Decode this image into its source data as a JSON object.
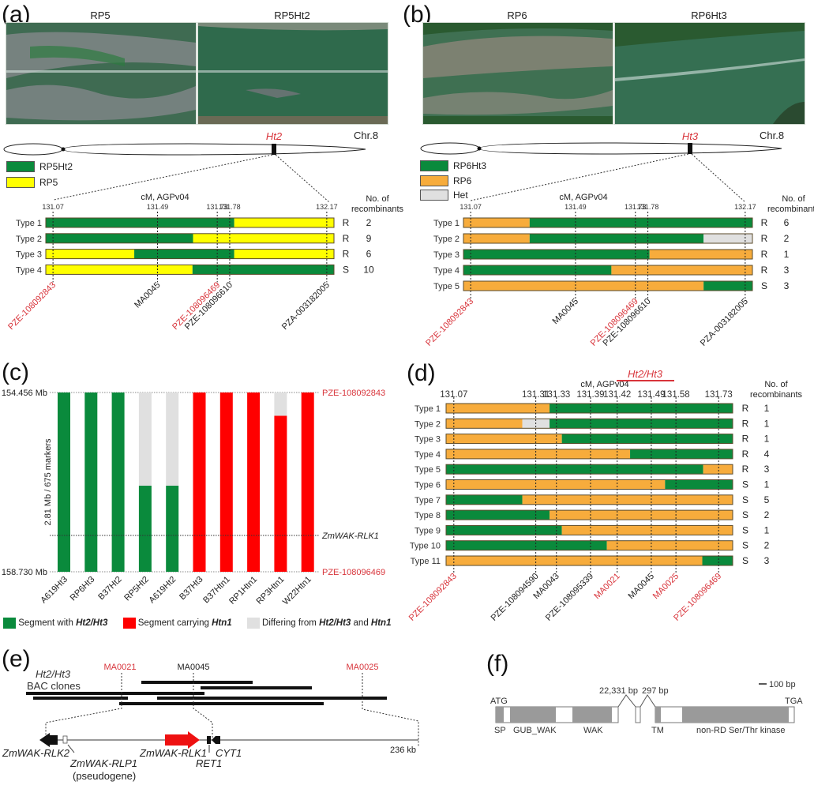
{
  "colors": {
    "green": "#0a8a3c",
    "yellow": "#ffff00",
    "orange": "#f7ac3c",
    "het": "#e0e0e0",
    "red": "#ff0000",
    "marker_red": "#d8343b",
    "gray_domain": "#9a9a9a"
  },
  "panel_a": {
    "label": "(a)",
    "photos": [
      {
        "title": "RP5"
      },
      {
        "title": "RP5Ht2"
      }
    ],
    "gene_label": "Ht2",
    "chr_label": "Chr.8",
    "legend": [
      {
        "label": "RP5Ht2",
        "color": "green"
      },
      {
        "label": "RP5",
        "color": "yellow"
      }
    ],
    "axis_title": "cM, AGPv04",
    "col_header_1": "No. of",
    "col_header_2": "recombinants"
  },
  "panel_b": {
    "label": "(b)",
    "photos": [
      {
        "title": "RP6"
      },
      {
        "title": "RP6Ht3"
      }
    ],
    "gene_label": "Ht3",
    "chr_label": "Chr.8",
    "legend": [
      {
        "label": "RP6Ht3",
        "color": "green"
      },
      {
        "label": "RP6",
        "color": "orange"
      },
      {
        "label": "Het",
        "color": "het"
      }
    ],
    "axis_title": "cM, AGPv04",
    "col_header_1": "No. of",
    "col_header_2": "recombinants"
  },
  "panel_c": {
    "label": "(c)",
    "top_label": "154.456 Mb",
    "bottom_label": "158.730 Mb",
    "yaxis_label": "2.81 Mb / 675 markers",
    "top_marker": "PZE-108092843",
    "mid_marker": "ZmWAK-RLK1",
    "bottom_marker": "PZE-108096469",
    "legend": [
      {
        "label_pre": "Segment with ",
        "label_bold": "Ht2/Ht3",
        "label_mid": "",
        "label_bold2": "",
        "color": "green"
      },
      {
        "label_pre": "Segment carrying ",
        "label_bold": "Htn1",
        "label_mid": "",
        "label_bold2": "",
        "color": "red"
      },
      {
        "label_pre": "Differing from ",
        "label_bold": "Ht2/Ht3",
        "label_mid": " and ",
        "label_bold2": "Htn1",
        "color": "het"
      }
    ]
  },
  "panel_d": {
    "label": "(d)",
    "axis_title": "cM, AGPv04",
    "region_label": "Ht2/Ht3",
    "col_header_1": "No. of",
    "col_header_2": "recombinants"
  },
  "panel_e": {
    "label": "(e)",
    "title_italic": "Ht2/Ht3",
    "title_2": "BAC clones",
    "markers": [
      {
        "name": "MA0021",
        "red": true
      },
      {
        "name": "MA0045",
        "red": false
      },
      {
        "name": "MA0025",
        "red": true
      }
    ],
    "length_label": "236 kb",
    "genes": [
      {
        "name": "ZmWAK-RLK2"
      },
      {
        "name": "ZmWAK-RLP1"
      },
      {
        "name": "(pseudogene)"
      },
      {
        "name": "ZmWAK-RLK1"
      },
      {
        "name": "RET1"
      },
      {
        "name": "CYT1"
      }
    ]
  },
  "panel_f": {
    "label": "(f)",
    "scale_label": "100 bp",
    "intron1": "22,331 bp",
    "intron2": "297 bp",
    "start_codon": "ATG",
    "stop_codon": "TGA",
    "domains": [
      "SP",
      "GUB_WAK",
      "WAK",
      "TM",
      "non-RD Ser/Thr kinase"
    ]
  },
  "chart_data": [
    {
      "type": "haplotype-bars",
      "panel": "a",
      "xlabel": "cM, AGPv04",
      "ticks": [
        {
          "pos": 131.07,
          "marker": "PZE-108092843",
          "red": true
        },
        {
          "pos": 131.49,
          "marker": "MA0045",
          "red": false
        },
        {
          "pos": 131.73,
          "marker": "PZE-108096469",
          "red": true
        },
        {
          "pos": 131.78,
          "marker": "PZE-108096610",
          "red": false
        },
        {
          "pos": 132.17,
          "marker": "PZA-003182005",
          "red": false
        }
      ],
      "rows": [
        {
          "name": "Type 1",
          "phenotype": "R",
          "count": 2,
          "segments": [
            [
              "green",
              0,
              0.654
            ],
            [
              "yellow",
              0.654,
              1
            ]
          ]
        },
        {
          "name": "Type 2",
          "phenotype": "R",
          "count": 9,
          "segments": [
            [
              "green",
              0,
              0.511
            ],
            [
              "yellow",
              0.511,
              1
            ]
          ]
        },
        {
          "name": "Type 3",
          "phenotype": "R",
          "count": 6,
          "segments": [
            [
              "yellow",
              0,
              0.307
            ],
            [
              "green",
              0.307,
              0.654
            ],
            [
              "yellow",
              0.654,
              1
            ]
          ]
        },
        {
          "name": "Type 4",
          "phenotype": "S",
          "count": 10,
          "segments": [
            [
              "yellow",
              0,
              0.509
            ],
            [
              "green",
              0.509,
              1
            ]
          ]
        }
      ]
    },
    {
      "type": "haplotype-bars",
      "panel": "b",
      "xlabel": "cM, AGPv04",
      "ticks": [
        {
          "pos": 131.07,
          "marker": "PZE-108092843",
          "red": true
        },
        {
          "pos": 131.49,
          "marker": "MA0045",
          "red": false
        },
        {
          "pos": 131.73,
          "marker": "PZE-108096469",
          "red": true
        },
        {
          "pos": 131.78,
          "marker": "PZE-108096610",
          "red": false
        },
        {
          "pos": 132.17,
          "marker": "PZA-003182005",
          "red": false
        }
      ],
      "rows": [
        {
          "name": "Type 1",
          "phenotype": "R",
          "count": 6,
          "segments": [
            [
              "orange",
              0,
              0.229
            ],
            [
              "green",
              0.229,
              1
            ]
          ]
        },
        {
          "name": "Type 2",
          "phenotype": "R",
          "count": 2,
          "segments": [
            [
              "orange",
              0,
              0.229
            ],
            [
              "green",
              0.229,
              0.831
            ],
            [
              "het",
              0.831,
              1
            ]
          ]
        },
        {
          "name": "Type 3",
          "phenotype": "R",
          "count": 1,
          "segments": [
            [
              "green",
              0,
              0.644
            ],
            [
              "orange",
              0.644,
              1
            ]
          ]
        },
        {
          "name": "Type 4",
          "phenotype": "R",
          "count": 3,
          "segments": [
            [
              "green",
              0,
              0.512
            ],
            [
              "orange",
              0.512,
              1
            ]
          ]
        },
        {
          "name": "Type 5",
          "phenotype": "S",
          "count": 3,
          "segments": [
            [
              "orange",
              0,
              0.831
            ],
            [
              "green",
              0.831,
              1
            ]
          ]
        }
      ]
    },
    {
      "type": "bar",
      "panel": "c",
      "ylabel": "2.81 Mb / 675 markers",
      "ylim": [
        154.456,
        158.73
      ],
      "categories": [
        "A619Ht3",
        "RP6Ht3",
        "B37Ht2",
        "RP5Ht2",
        "A619Ht2",
        "B37Ht3",
        "B37Htn1",
        "RP1Htn1",
        "RP3Htn1",
        "W22Htn1"
      ],
      "series": [
        {
          "name": "Segment with Ht2/Ht3",
          "color": "green",
          "values": [
            1,
            1,
            1,
            0.48,
            0.48,
            0,
            0,
            0,
            0,
            0
          ]
        },
        {
          "name": "Segment carrying Htn1",
          "color": "red",
          "values": [
            0,
            0,
            0,
            0,
            0,
            1,
            1,
            1,
            0.87,
            1
          ]
        },
        {
          "name": "Differing from Ht2/Ht3 and Htn1",
          "color": "het",
          "values": [
            0,
            0,
            0,
            0.52,
            0.52,
            0,
            0,
            0,
            0.13,
            0
          ]
        }
      ]
    },
    {
      "type": "haplotype-bars",
      "panel": "d",
      "xlabel": "cM, AGPv04",
      "ticks": [
        {
          "pos": 131.07,
          "marker": "PZE-108092843",
          "red": true
        },
        {
          "pos": 131.31,
          "marker": "PZE-108094590",
          "red": false
        },
        {
          "pos": 131.33,
          "marker": "MA0043",
          "red": false
        },
        {
          "pos": 131.39,
          "marker": "PZE-108095339",
          "red": false
        },
        {
          "pos": 131.42,
          "marker": "MA0021",
          "red": true
        },
        {
          "pos": 131.49,
          "marker": "MA0045",
          "red": false
        },
        {
          "pos": 131.58,
          "marker": "MA0025",
          "red": true
        },
        {
          "pos": 131.73,
          "marker": "PZE-108096469",
          "red": true
        }
      ],
      "rows": [
        {
          "name": "Type 1",
          "phenotype": "R",
          "count": 1,
          "segments": [
            [
              "orange",
              0,
              0.361
            ],
            [
              "green",
              0.361,
              1
            ]
          ]
        },
        {
          "name": "Type 2",
          "phenotype": "R",
          "count": 1,
          "segments": [
            [
              "orange",
              0,
              0.266
            ],
            [
              "het",
              0.266,
              0.361
            ],
            [
              "green",
              0.361,
              1
            ]
          ]
        },
        {
          "name": "Type 3",
          "phenotype": "R",
          "count": 1,
          "segments": [
            [
              "orange",
              0,
              0.404
            ],
            [
              "green",
              0.404,
              1
            ]
          ]
        },
        {
          "name": "Type 4",
          "phenotype": "R",
          "count": 4,
          "segments": [
            [
              "orange",
              0,
              0.642
            ],
            [
              "green",
              0.642,
              1
            ]
          ]
        },
        {
          "name": "Type 5",
          "phenotype": "R",
          "count": 3,
          "segments": [
            [
              "green",
              0,
              0.897
            ],
            [
              "orange",
              0.897,
              1
            ]
          ]
        },
        {
          "name": "Type 6",
          "phenotype": "S",
          "count": 1,
          "segments": [
            [
              "orange",
              0,
              0.764
            ],
            [
              "green",
              0.764,
              1
            ]
          ]
        },
        {
          "name": "Type 7",
          "phenotype": "S",
          "count": 5,
          "segments": [
            [
              "green",
              0,
              0.266
            ],
            [
              "orange",
              0.266,
              1
            ]
          ]
        },
        {
          "name": "Type 8",
          "phenotype": "S",
          "count": 2,
          "segments": [
            [
              "green",
              0,
              0.361
            ],
            [
              "orange",
              0.361,
              1
            ]
          ]
        },
        {
          "name": "Type 9",
          "phenotype": "S",
          "count": 1,
          "segments": [
            [
              "green",
              0,
              0.404
            ],
            [
              "orange",
              0.404,
              1
            ]
          ]
        },
        {
          "name": "Type 10",
          "phenotype": "S",
          "count": 2,
          "segments": [
            [
              "green",
              0,
              0.561
            ],
            [
              "orange",
              0.561,
              1
            ]
          ]
        },
        {
          "name": "Type 11",
          "phenotype": "S",
          "count": 3,
          "segments": [
            [
              "orange",
              0,
              0.894
            ],
            [
              "green",
              0.894,
              1
            ]
          ]
        }
      ]
    }
  ]
}
